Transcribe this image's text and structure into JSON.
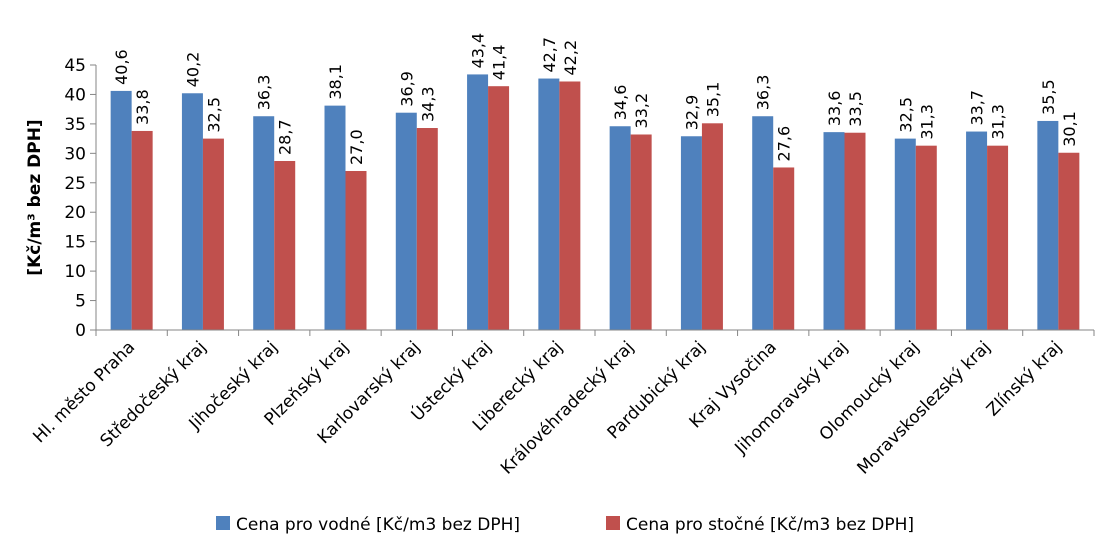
{
  "chart_data": {
    "type": "bar",
    "title": "",
    "xlabel": "",
    "ylabel": "[Kč/m³ bez DPH]",
    "ylim": [
      0,
      45
    ],
    "y_ticks": [
      0,
      5,
      10,
      15,
      20,
      25,
      30,
      35,
      40,
      45
    ],
    "grid": false,
    "legend_position": "bottom",
    "categories": [
      "Hl. město Praha",
      "Středočeský kraj",
      "Jihočeský kraj",
      "Plzeňský kraj",
      "Karlovarský kraj",
      "Ústecký kraj",
      "Liberecký kraj",
      "Královéhradecký kraj",
      "Pardubický kraj",
      "Kraj Vysočina",
      "Jihomoravský kraj",
      "Olomoucký kraj",
      "Moravskoslezský kraj",
      "Zlínský kraj"
    ],
    "series": [
      {
        "name": "Cena pro vodné [Kč/m3 bez DPH]",
        "color": "#4f81bd",
        "values": [
          40.6,
          40.2,
          36.3,
          38.1,
          36.9,
          43.4,
          42.7,
          34.6,
          32.9,
          36.3,
          33.6,
          32.5,
          33.7,
          35.5
        ],
        "labels": [
          "40,6",
          "40,2",
          "36,3",
          "38,1",
          "36,9",
          "43,4",
          "42,7",
          "34,6",
          "32,9",
          "36,3",
          "33,6",
          "32,5",
          "33,7",
          "35,5"
        ]
      },
      {
        "name": "Cena pro stočné [Kč/m3 bez DPH]",
        "color": "#c0504d",
        "values": [
          33.8,
          32.5,
          28.7,
          27.0,
          34.3,
          41.4,
          42.2,
          33.2,
          35.1,
          27.6,
          33.5,
          31.3,
          31.3,
          30.1
        ],
        "labels": [
          "33,8",
          "32,5",
          "28,7",
          "27,0",
          "34,3",
          "41,4",
          "42,2",
          "33,2",
          "35,1",
          "27,6",
          "33,5",
          "31,3",
          "31,3",
          "30,1"
        ]
      }
    ]
  }
}
